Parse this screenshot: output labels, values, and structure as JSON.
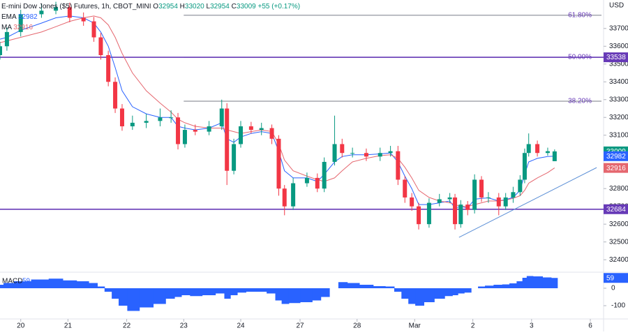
{
  "chart_data": {
    "type": "candlestick",
    "title": "E-mini Dow Jones ($5) Futures, 1h, CBOT_MINI",
    "ohlc_labels": [
      "O",
      "H",
      "L",
      "C"
    ],
    "change_label": "+55 (+0.17%)",
    "currency": "USD",
    "x": [
      -0.36,
      -0.24,
      0,
      0.36,
      0.61,
      0.85,
      1.09,
      1.27,
      1.39,
      1.52,
      1.64,
      1.76,
      1.94,
      2.18,
      2.42,
      2.61,
      2.73,
      2.85,
      3.03,
      3.27,
      3.49,
      3.58,
      3.7,
      3.82,
      4.0,
      4.18,
      4.36,
      4.48,
      4.58,
      4.73,
      4.97,
      5.15,
      5.27,
      5.45,
      5.58,
      5.76,
      6.0,
      6.24,
      6.42,
      6.55,
      6.67,
      6.79,
      6.91,
      7.09,
      7.27,
      7.45,
      7.54,
      7.64,
      7.76,
      7.88,
      8.0,
      8.12,
      8.3,
      8.42,
      8.55,
      8.67,
      8.75,
      8.82,
      8.97,
      9.15,
      9.27
    ],
    "xlim": [
      -0.36,
      10.12
    ],
    "xticks": [
      {
        "value": 0,
        "label": "20"
      },
      {
        "value": 0.82,
        "label": "21"
      },
      {
        "value": 1.84,
        "label": "22"
      },
      {
        "value": 2.83,
        "label": "23"
      },
      {
        "value": 3.82,
        "label": "24"
      },
      {
        "value": 4.85,
        "label": "27"
      },
      {
        "value": 5.84,
        "label": "28"
      },
      {
        "value": 6.84,
        "label": "Mar"
      },
      {
        "value": 7.85,
        "label": "2"
      },
      {
        "value": 8.87,
        "label": "3"
      },
      {
        "value": 9.89,
        "label": "6"
      }
    ],
    "ylim": [
      32330,
      33860
    ],
    "yticks": [
      32400,
      32500,
      32600,
      32700,
      32800,
      32900,
      33000,
      33100,
      33200,
      33300,
      33400,
      33500,
      33600,
      33700
    ],
    "open": [
      33550,
      33600,
      33680,
      33780,
      33800,
      33820,
      33760,
      33740,
      33650,
      33550,
      33400,
      33250,
      33150,
      33170,
      33180,
      33200,
      33200,
      33050,
      33130,
      33120,
      33150,
      33250,
      32900,
      33050,
      33150,
      33130,
      33140,
      33080,
      32800,
      32700,
      32830,
      32860,
      32800,
      32950,
      33050,
      33000,
      33000,
      32980,
      33000,
      33010,
      32850,
      32750,
      32700,
      32600,
      32720,
      32740,
      32750,
      32600,
      32710,
      32680,
      32850,
      32750,
      32750,
      32700,
      32750,
      32780,
      32850,
      33000,
      33050,
      33000,
      32954
    ],
    "high": [
      33625,
      33705,
      33805,
      33840,
      33850,
      33845,
      33790,
      33765,
      33675,
      33575,
      33425,
      33275,
      33210,
      33220,
      33250,
      33240,
      33225,
      33160,
      33160,
      33180,
      33300,
      33280,
      33080,
      33180,
      33175,
      33170,
      33160,
      33100,
      32820,
      32860,
      32890,
      32885,
      32975,
      33210,
      33080,
      33030,
      33025,
      33030,
      33040,
      33040,
      32870,
      32775,
      32720,
      32745,
      32770,
      32775,
      32770,
      32735,
      32730,
      32880,
      32870,
      32780,
      32775,
      32775,
      32810,
      32875,
      33025,
      33110,
      33070,
      33030,
      33020
    ],
    "low": [
      33525,
      33575,
      33655,
      33760,
      33780,
      33735,
      33715,
      33625,
      33525,
      33375,
      33225,
      33125,
      33130,
      33140,
      33150,
      33170,
      33020,
      33030,
      33100,
      33100,
      33130,
      32820,
      32880,
      33030,
      33110,
      33100,
      33050,
      32760,
      32650,
      32680,
      32810,
      32780,
      32780,
      32930,
      32975,
      32975,
      32955,
      32955,
      32980,
      32820,
      32720,
      32675,
      32570,
      32580,
      32700,
      32720,
      32570,
      32580,
      32650,
      32660,
      32725,
      32720,
      32650,
      32680,
      32720,
      32760,
      32830,
      32980,
      32980,
      32985,
      32954
    ],
    "close": [
      33600,
      33680,
      33780,
      33800,
      33820,
      33760,
      33740,
      33650,
      33550,
      33400,
      33250,
      33150,
      33170,
      33180,
      33200,
      33200,
      33050,
      33130,
      33120,
      33150,
      33250,
      32900,
      33050,
      33150,
      33130,
      33140,
      33080,
      32800,
      32700,
      32830,
      32860,
      32800,
      32950,
      33050,
      33000,
      33000,
      32980,
      33000,
      33010,
      32850,
      32750,
      32700,
      32600,
      32720,
      32740,
      32750,
      32600,
      32710,
      32680,
      32850,
      32750,
      32750,
      32700,
      32750,
      32780,
      32850,
      33000,
      33050,
      33000,
      33010,
      33009
    ],
    "up_color": "#089981",
    "down_color": "#f23645",
    "series": [
      {
        "name": "EMA",
        "color": "#2962ff",
        "values": [
          33640,
          33650,
          33690,
          33730,
          33760,
          33770,
          33760,
          33730,
          33680,
          33600,
          33480,
          33350,
          33260,
          33220,
          33200,
          33200,
          33150,
          33140,
          33130,
          33140,
          33170,
          33080,
          33060,
          33090,
          33110,
          33120,
          33110,
          33010,
          32900,
          32860,
          32860,
          32840,
          32880,
          32950,
          32980,
          32990,
          32990,
          32995,
          33000,
          32950,
          32870,
          32800,
          32710,
          32710,
          32720,
          32730,
          32690,
          32700,
          32690,
          32740,
          32745,
          32748,
          32730,
          32738,
          32750,
          32790,
          32880,
          32950,
          32970,
          32980,
          32982
        ]
      },
      {
        "name": "MA",
        "color": "#e5676f",
        "values": [
          33620,
          33630,
          33650,
          33680,
          33710,
          33740,
          33760,
          33770,
          33760,
          33720,
          33650,
          33560,
          33450,
          33350,
          33280,
          33230,
          33190,
          33170,
          33150,
          33140,
          33140,
          33130,
          33120,
          33110,
          33120,
          33130,
          33120,
          33050,
          32960,
          32900,
          32870,
          32850,
          32840,
          32860,
          32900,
          32950,
          32970,
          32985,
          32990,
          32970,
          32920,
          32860,
          32790,
          32750,
          32730,
          32720,
          32710,
          32700,
          32700,
          32710,
          32720,
          32730,
          32730,
          32735,
          32745,
          32760,
          32790,
          32830,
          32860,
          32890,
          32916
        ]
      }
    ],
    "levels": [
      {
        "value": 33538,
        "color": "#673ab7"
      },
      {
        "value": 32684,
        "color": "#673ab7"
      }
    ],
    "fib": {
      "start": 2.83,
      "color": "#787b86",
      "lines": [
        {
          "value": 33774,
          "label": "61.80%"
        },
        {
          "value": 33538,
          "label": "50.00%"
        },
        {
          "value": 33291,
          "label": "38.20%"
        }
      ]
    },
    "trendline": {
      "x": [
        7.61,
        10.0
      ],
      "y": [
        32526,
        32918
      ],
      "color": "#5b8fd6"
    },
    "macd": {
      "name": "MACD",
      "color": "#2962ff",
      "ylim": [
        -168,
        80
      ],
      "yticks": [
        -100,
        0
      ],
      "values": [
        20,
        30,
        40,
        50,
        55,
        45,
        40,
        30,
        10,
        -20,
        -60,
        -100,
        -130,
        -110,
        -90,
        -60,
        -50,
        -40,
        -45,
        -40,
        -30,
        -60,
        -40,
        -25,
        -20,
        -20,
        -30,
        -70,
        -90,
        -85,
        -80,
        -70,
        -50,
        0,
        35,
        30,
        20,
        12,
        10,
        -20,
        -60,
        -90,
        -100,
        -80,
        -60,
        -45,
        -40,
        -30,
        -25,
        0,
        10,
        15,
        20,
        22,
        28,
        40,
        60,
        70,
        68,
        62,
        59
      ]
    }
  }
}
